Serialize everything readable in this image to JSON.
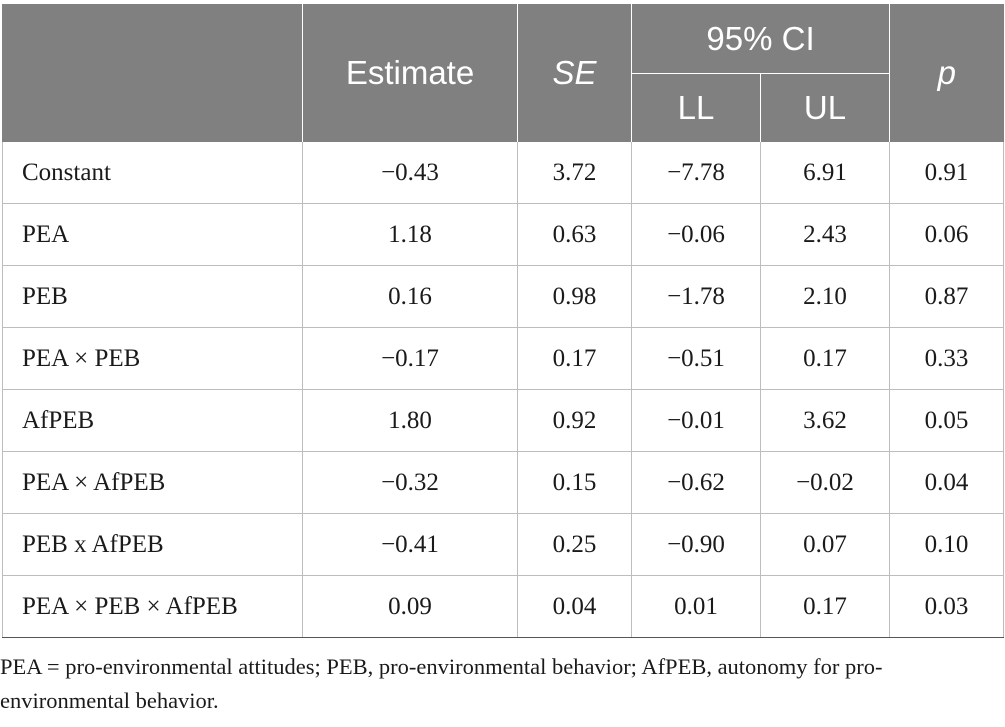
{
  "table": {
    "header": {
      "estimate": "Estimate",
      "se": "SE",
      "ci": "95% CI",
      "ll": "LL",
      "ul": "UL",
      "p": "p"
    },
    "rows": [
      {
        "label": "Constant",
        "estimate": "−0.43",
        "se": "3.72",
        "ll": "−7.78",
        "ul": "6.91",
        "p": "0.91"
      },
      {
        "label": "PEA",
        "estimate": "1.18",
        "se": "0.63",
        "ll": "−0.06",
        "ul": "2.43",
        "p": "0.06"
      },
      {
        "label": "PEB",
        "estimate": "0.16",
        "se": "0.98",
        "ll": "−1.78",
        "ul": "2.10",
        "p": "0.87"
      },
      {
        "label": "PEA × PEB",
        "estimate": "−0.17",
        "se": "0.17",
        "ll": "−0.51",
        "ul": "0.17",
        "p": "0.33"
      },
      {
        "label": "AfPEB",
        "estimate": "1.80",
        "se": "0.92",
        "ll": "−0.01",
        "ul": "3.62",
        "p": "0.05"
      },
      {
        "label": "PEA × AfPEB",
        "estimate": "−0.32",
        "se": "0.15",
        "ll": "−0.62",
        "ul": "−0.02",
        "p": "0.04"
      },
      {
        "label": "PEB x AfPEB",
        "estimate": "−0.41",
        "se": "0.25",
        "ll": "−0.90",
        "ul": "0.07",
        "p": "0.10"
      },
      {
        "label": "PEA × PEB × AfPEB",
        "estimate": "0.09",
        "se": "0.04",
        "ll": "0.01",
        "ul": "0.17",
        "p": "0.03"
      }
    ]
  },
  "footnote": "PEA = pro-environmental attitudes; PEB, pro-environmental behavior; AfPEB, autonomy for pro-environmental behavior.",
  "colors": {
    "header_bg": "#808080",
    "header_text": "#ffffff",
    "grid": "#bdbdbd"
  }
}
